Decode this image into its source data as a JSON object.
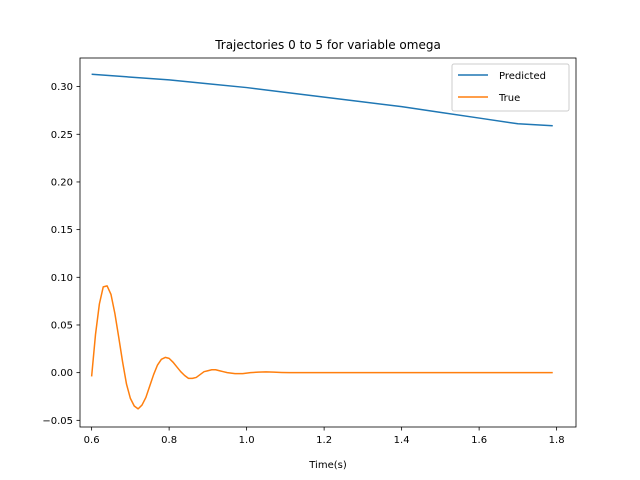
{
  "chart_data": {
    "type": "line",
    "title": "Trajectories 0 to 5 for variable omega",
    "xlabel": "Time(s)",
    "ylabel": "",
    "xlim": [
      0.57,
      1.85
    ],
    "ylim": [
      -0.057,
      0.33
    ],
    "xticks": [
      0.6,
      0.8,
      1.0,
      1.2,
      1.4,
      1.6,
      1.8
    ],
    "xtick_labels": [
      "0.6",
      "0.8",
      "1.0",
      "1.2",
      "1.4",
      "1.6",
      "1.8"
    ],
    "yticks": [
      -0.05,
      0.0,
      0.05,
      0.1,
      0.15,
      0.2,
      0.25,
      0.3
    ],
    "ytick_labels": [
      "−0.05",
      "0.00",
      "0.05",
      "0.10",
      "0.15",
      "0.20",
      "0.25",
      "0.30"
    ],
    "grid": false,
    "legend_position": "top-right",
    "series": [
      {
        "name": "Predicted",
        "color": "#1f77b4",
        "x": [
          0.6,
          0.7,
          0.8,
          0.9,
          1.0,
          1.1,
          1.2,
          1.3,
          1.4,
          1.5,
          1.6,
          1.7,
          1.79
        ],
        "y": [
          0.313,
          0.31,
          0.307,
          0.303,
          0.299,
          0.294,
          0.289,
          0.284,
          0.279,
          0.273,
          0.267,
          0.261,
          0.259
        ]
      },
      {
        "name": "True",
        "color": "#ff7f0e",
        "x": [
          0.6,
          0.61,
          0.62,
          0.63,
          0.64,
          0.65,
          0.66,
          0.67,
          0.68,
          0.69,
          0.7,
          0.71,
          0.72,
          0.73,
          0.74,
          0.75,
          0.76,
          0.77,
          0.78,
          0.79,
          0.8,
          0.81,
          0.82,
          0.83,
          0.84,
          0.85,
          0.86,
          0.87,
          0.88,
          0.89,
          0.9,
          0.91,
          0.92,
          0.93,
          0.94,
          0.95,
          0.97,
          0.99,
          1.01,
          1.03,
          1.05,
          1.07,
          1.09,
          1.11,
          1.13,
          1.15,
          1.17,
          1.2,
          1.25,
          1.3,
          1.35,
          1.4,
          1.5,
          1.6,
          1.7,
          1.79
        ],
        "y": [
          -0.004,
          0.04,
          0.072,
          0.09,
          0.091,
          0.082,
          0.062,
          0.037,
          0.011,
          -0.012,
          -0.027,
          -0.035,
          -0.038,
          -0.034,
          -0.026,
          -0.014,
          -0.002,
          0.008,
          0.014,
          0.016,
          0.015,
          0.011,
          0.006,
          0.001,
          -0.003,
          -0.006,
          -0.006,
          -0.005,
          -0.002,
          0.001,
          0.002,
          0.003,
          0.003,
          0.002,
          0.001,
          0.0,
          -0.001,
          -0.001,
          0.0,
          0.0005,
          0.0008,
          0.0005,
          0.0002,
          0.0,
          0.0,
          0.0,
          0.0,
          0.0,
          0.0,
          0.0,
          0.0,
          0.0,
          0.0,
          0.0,
          0.0,
          0.0
        ]
      }
    ]
  }
}
